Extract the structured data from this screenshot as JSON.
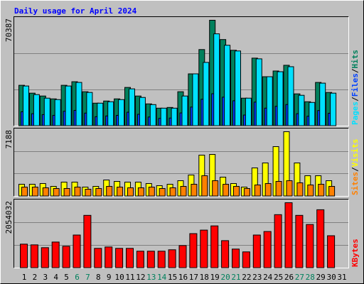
{
  "title": "Daily usage for April 2024",
  "chart_data": [
    {
      "type": "bar",
      "ylim": [
        0,
        70387
      ],
      "yticks": [
        70387
      ],
      "legend_separator": "/",
      "series": [
        {
          "name": "Hits",
          "color": "#00805c",
          "values": [
            27110,
            21880,
            19975,
            18073,
            27110,
            29487,
            22829,
            15219,
            16646,
            18073,
            25682,
            19975,
            14744,
            11890,
            12366,
            22829,
            34719,
            50889,
            70387,
            57548,
            50414,
            18548,
            45182,
            32816,
            36621,
            40426,
            21402,
            16170,
            29012,
            22353,
            null
          ]
        },
        {
          "name": "Files",
          "color": "#0040ff",
          "values": [
            9500,
            8200,
            7600,
            7100,
            9800,
            10400,
            8600,
            6200,
            6700,
            7100,
            9200,
            7800,
            6000,
            5100,
            5300,
            8700,
            12600,
            17800,
            21500,
            19200,
            16800,
            7300,
            15900,
            11900,
            13100,
            14300,
            8200,
            6500,
            10300,
            8500,
            null
          ]
        },
        {
          "name": "Pages",
          "color": "#00e0ff",
          "values": [
            26634,
            20926,
            18548,
            17597,
            26634,
            29012,
            22353,
            15219,
            16170,
            17597,
            24731,
            19024,
            14268,
            11890,
            11890,
            19975,
            34719,
            42328,
            61352,
            53743,
            49938,
            18548,
            44706,
            32816,
            36146,
            39475,
            20451,
            15695,
            28536,
            21878,
            null
          ]
        }
      ]
    },
    {
      "type": "bar",
      "ylim": [
        0,
        7188
      ],
      "yticks": [
        7188
      ],
      "legend_separator": "/",
      "series": [
        {
          "name": "Visits",
          "color": "#ffff00",
          "values": [
            1343,
            1343,
            1422,
            1106,
            1580,
            1580,
            1027,
            1106,
            1817,
            1659,
            1580,
            1580,
            1422,
            1185,
            1343,
            1738,
            2370,
            4582,
            4661,
            2133,
            1422,
            1027,
            3160,
            3713,
            5530,
            7188,
            3713,
            2291,
            2291,
            1738,
            null
          ]
        },
        {
          "name": "Sites",
          "color": "#ff8000",
          "values": [
            1027,
            1027,
            948,
            869,
            869,
            1027,
            790,
            869,
            1106,
            1027,
            948,
            948,
            1027,
            869,
            948,
            1106,
            1343,
            2291,
            1738,
            1343,
            1106,
            869,
            1264,
            1422,
            1659,
            1738,
            1501,
            1264,
            1343,
            1106,
            null
          ]
        }
      ]
    },
    {
      "type": "bar",
      "ylim": [
        0,
        2054032
      ],
      "yticks": [
        2054032
      ],
      "series": [
        {
          "name": "KBytes",
          "color": "#ff0000",
          "values": [
            750924,
            728838,
            640494,
            817182,
            684666,
            1038042,
            1656450,
            618408,
            662580,
            618408,
            618408,
            530064,
            530064,
            530064,
            574236,
            706752,
            1082214,
            1192644,
            1325160,
            861354,
            596322,
            507978,
            1038042,
            1148472,
            1678536,
            2054032,
            1656450,
            1369332,
            1833138,
            1015956,
            null
          ]
        }
      ],
      "categories": [
        "1",
        "2",
        "3",
        "4",
        "5",
        "6",
        "7",
        "8",
        "9",
        "10",
        "11",
        "12",
        "13",
        "14",
        "15",
        "16",
        "17",
        "18",
        "19",
        "20",
        "21",
        "22",
        "23",
        "24",
        "25",
        "26",
        "27",
        "28",
        "29",
        "30",
        "31"
      ],
      "category_colors": [
        "#000000",
        "#000000",
        "#000000",
        "#000000",
        "#000000",
        "#00805c",
        "#00805c",
        "#000000",
        "#000000",
        "#000000",
        "#000000",
        "#000000",
        "#00805c",
        "#00805c",
        "#000000",
        "#000000",
        "#000000",
        "#000000",
        "#000000",
        "#00805c",
        "#00805c",
        "#000000",
        "#000000",
        "#000000",
        "#000000",
        "#000000",
        "#00805c",
        "#00805c",
        "#000000",
        "#000000",
        "#000000"
      ]
    }
  ]
}
